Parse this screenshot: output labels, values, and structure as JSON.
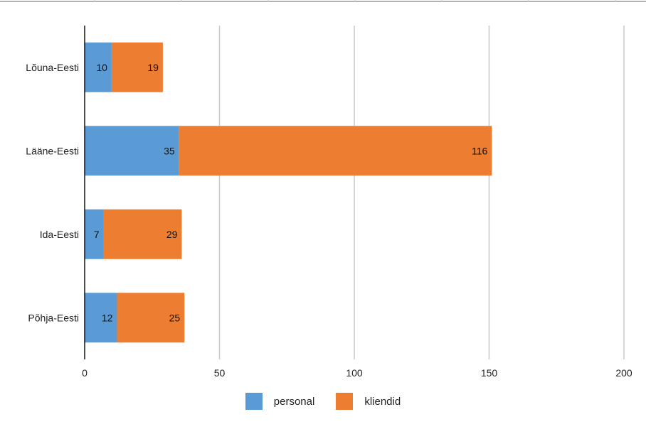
{
  "chart_data": {
    "type": "bar",
    "orientation": "horizontal",
    "stacked": true,
    "categories": [
      "Lõuna-Eesti",
      "Lääne-Eesti",
      "Ida-Eesti",
      "Põhja-Eesti"
    ],
    "series": [
      {
        "name": "personal",
        "color": "#5B9BD5",
        "values": [
          10,
          35,
          7,
          12
        ]
      },
      {
        "name": "kliendid",
        "color": "#ED7D31",
        "values": [
          19,
          116,
          29,
          25
        ]
      }
    ],
    "xlim": [
      0,
      200
    ],
    "xticks": [
      0,
      50,
      100,
      150,
      200
    ],
    "xtick_labels": [
      "0",
      "50",
      "100",
      "150",
      "200"
    ],
    "grid": true,
    "legend_position": "bottom",
    "data_labels": true
  }
}
